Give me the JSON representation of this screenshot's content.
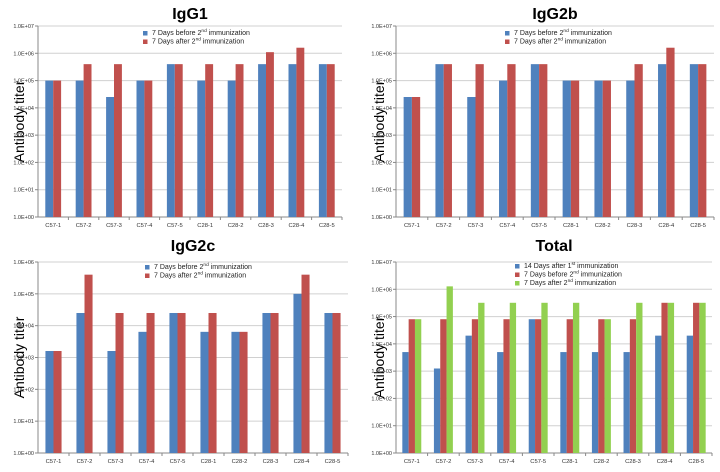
{
  "colors": {
    "blue": "#4F81BD",
    "red": "#C0504D",
    "green": "#92D050"
  },
  "chart_data": [
    {
      "type": "bar",
      "title": "IgG1",
      "ylabel": "Antibody titer",
      "yscale": "log",
      "ylim": [
        1,
        10000000
      ],
      "yticks": [
        "1.0E+00",
        "1.0E+01",
        "1.0E+02",
        "1.0E+03",
        "1.0E+04",
        "1.0E+05",
        "1.0E+06",
        "1.0E+07"
      ],
      "categories": [
        "C57-1",
        "C57-2",
        "C57-3",
        "C57-4",
        "C57-5",
        "C28-1",
        "C28-2",
        "C28-3",
        "C28-4",
        "C28-5"
      ],
      "legend": {
        "position": "top-right"
      },
      "series": [
        {
          "name_main": "7 Days before 2",
          "name_sup": "nd",
          "name_tail": " immunization",
          "color": "#4F81BD",
          "values": [
            100000,
            100000,
            25000,
            100000,
            400000,
            100000,
            100000,
            400000,
            400000,
            400000
          ]
        },
        {
          "name_main": "7 Days after 2",
          "name_sup": "nd",
          "name_tail": " immunization",
          "color": "#C0504D",
          "values": [
            100000,
            400000,
            400000,
            100000,
            400000,
            400000,
            400000,
            1100000,
            1600000,
            400000
          ]
        }
      ]
    },
    {
      "type": "bar",
      "title": "IgG2b",
      "ylabel": "Antibody titer",
      "yscale": "log",
      "ylim": [
        1,
        10000000
      ],
      "yticks": [
        "1.0E+00",
        "1.0E+01",
        "1.0E+02",
        "1.0E+03",
        "1.0E+04",
        "1.0E+05",
        "1.0E+06",
        "1.0E+07"
      ],
      "categories": [
        "C57-1",
        "C57-2",
        "C57-3",
        "C57-4",
        "C57-5",
        "C28-1",
        "C28-2",
        "C28-3",
        "C28-4",
        "C28-5"
      ],
      "legend": {
        "position": "top-right"
      },
      "series": [
        {
          "name_main": "7 Days before 2",
          "name_sup": "nd",
          "name_tail": " immunization",
          "color": "#4F81BD",
          "values": [
            25000,
            400000,
            25000,
            100000,
            400000,
            100000,
            100000,
            100000,
            400000,
            400000
          ]
        },
        {
          "name_main": "7 Days after 2",
          "name_sup": "nd",
          "name_tail": " immunization",
          "color": "#C0504D",
          "values": [
            25000,
            400000,
            400000,
            400000,
            400000,
            100000,
            100000,
            400000,
            1600000,
            400000
          ]
        }
      ]
    },
    {
      "type": "bar",
      "title": "IgG2c",
      "ylabel": "Antibody titer",
      "yscale": "log",
      "ylim": [
        1,
        1000000
      ],
      "yticks": [
        "1.0E+00",
        "1.0E+01",
        "1.0E+02",
        "1.0E+03",
        "1.0E+04",
        "1.0E+05",
        "1.0E+06"
      ],
      "categories": [
        "C57-1",
        "C57-2",
        "C57-3",
        "C57-4",
        "C57-5",
        "C28-1",
        "C28-2",
        "C28-3",
        "C28-4",
        "C28-5"
      ],
      "legend": {
        "position": "top-left"
      },
      "series": [
        {
          "name_main": "7 Days before 2",
          "name_sup": "nd",
          "name_tail": " immunization",
          "color": "#4F81BD",
          "values": [
            1600,
            25000,
            1600,
            6400,
            25000,
            6400,
            6400,
            25000,
            100000,
            25000
          ]
        },
        {
          "name_main": "7 Days after 2",
          "name_sup": "nd",
          "name_tail": " immunization",
          "color": "#C0504D",
          "values": [
            1600,
            400000,
            25000,
            25000,
            25000,
            25000,
            6400,
            25000,
            400000,
            25000
          ]
        }
      ]
    },
    {
      "type": "bar",
      "title": "Total",
      "ylabel": "Antibody titer",
      "yscale": "log",
      "ylim": [
        1,
        10000000
      ],
      "yticks": [
        "1.0E+00",
        "1.0E+01",
        "1.0E+02",
        "1.0E+03",
        "1.0E+04",
        "1.0E+05",
        "1.0E+06",
        "1.0E+07"
      ],
      "categories": [
        "C57-1",
        "C57-2",
        "C57-3",
        "C57-4",
        "C57-5",
        "C28-1",
        "C28-2",
        "C28-3",
        "C28-4",
        "C28-5"
      ],
      "legend": {
        "position": "top-left"
      },
      "series": [
        {
          "name_main": "14 Days after 1",
          "name_sup": "st",
          "name_tail": " immunization",
          "color": "#4F81BD",
          "values": [
            5000,
            1250,
            20000,
            5000,
            80000,
            5000,
            5000,
            5000,
            20000,
            20000
          ]
        },
        {
          "name_main": "7 Days before 2",
          "name_sup": "nd",
          "name_tail": " immunization",
          "color": "#C0504D",
          "values": [
            80000,
            80000,
            80000,
            80000,
            80000,
            80000,
            80000,
            80000,
            320000,
            320000
          ]
        },
        {
          "name_main": "7 Days after 2",
          "name_sup": "nd",
          "name_tail": " immunization",
          "color": "#92D050",
          "values": [
            80000,
            1280000,
            320000,
            320000,
            320000,
            320000,
            80000,
            320000,
            320000,
            320000
          ]
        }
      ]
    }
  ]
}
